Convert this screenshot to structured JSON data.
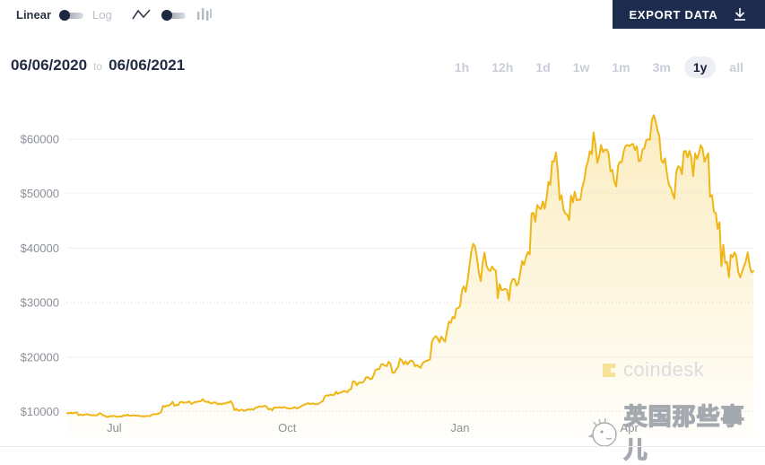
{
  "toolbar": {
    "linear_label": "Linear",
    "log_label": "Log",
    "icons": [
      "line-chart-icon",
      "candles-chart-icon"
    ]
  },
  "export_button": {
    "label": "EXPORT DATA",
    "icon": "download-icon",
    "bg_color": "#1d2b4f"
  },
  "date_range": {
    "start": "06/06/2020",
    "separator": "to",
    "end": "06/06/2021"
  },
  "range_buttons": [
    {
      "label": "1h",
      "active": false
    },
    {
      "label": "12h",
      "active": false
    },
    {
      "label": "1d",
      "active": false
    },
    {
      "label": "1w",
      "active": false
    },
    {
      "label": "1m",
      "active": false
    },
    {
      "label": "3m",
      "active": false
    },
    {
      "label": "1y",
      "active": true
    },
    {
      "label": "all",
      "active": false
    }
  ],
  "chart_data": {
    "type": "area",
    "title": "",
    "start_date": "06/06/2020",
    "end_date": "06/06/2021",
    "ylim": [
      8000,
      65000
    ],
    "grid": true,
    "line_color": "#f0b616",
    "fill_top": "rgba(244,196,48,0.30)",
    "fill_bottom": "rgba(244,196,48,0.02)",
    "y_ticks": [
      {
        "label": "$60000",
        "value": 60000,
        "line": "solid"
      },
      {
        "label": "$50000",
        "value": 50000,
        "line": "dotted"
      },
      {
        "label": "$40000",
        "value": 40000,
        "line": "solid"
      },
      {
        "label": "$30000",
        "value": 30000,
        "line": "dotted"
      },
      {
        "label": "$20000",
        "value": 20000,
        "line": "solid"
      },
      {
        "label": "$10000",
        "value": 10000,
        "line": "dotted"
      }
    ],
    "x_ticks": [
      {
        "label": "Jul",
        "day": 25
      },
      {
        "label": "Oct",
        "day": 117
      },
      {
        "label": "Jan",
        "day": 209
      },
      {
        "label": "Apr",
        "day": 299
      }
    ],
    "prices": [
      9660,
      9750,
      9770,
      9690,
      9790,
      9870,
      9320,
      9470,
      9340,
      9430,
      9530,
      9460,
      9390,
      9300,
      9360,
      9290,
      9330,
      9690,
      9620,
      9300,
      9250,
      9010,
      9070,
      9190,
      9140,
      9230,
      9090,
      9060,
      9130,
      9070,
      9340,
      9250,
      9440,
      9230,
      9280,
      9290,
      9300,
      9240,
      9250,
      9190,
      9130,
      9150,
      9170,
      9210,
      9160,
      9390,
      9520,
      9540,
      9550,
      9700,
      9930,
      11030,
      10910,
      11100,
      11110,
      11350,
      11810,
      11070,
      11230,
      11200,
      11750,
      11780,
      11600,
      11690,
      11680,
      11890,
      11390,
      11570,
      11780,
      11780,
      11850,
      11910,
      12250,
      11950,
      11750,
      11850,
      11530,
      11540,
      11680,
      11660,
      11320,
      11470,
      11330,
      11530,
      11470,
      11700,
      11650,
      11920,
      11390,
      10230,
      10510,
      10170,
      10280,
      10370,
      10130,
      10240,
      10400,
      10340,
      10440,
      10330,
      10670,
      10780,
      10950,
      10940,
      10930,
      11080,
      10920,
      10420,
      10530,
      10230,
      10740,
      10700,
      10750,
      10770,
      10690,
      10840,
      10780,
      10610,
      10570,
      10550,
      10670,
      10800,
      10600,
      10670,
      10920,
      11060,
      11290,
      11370,
      11530,
      11420,
      11420,
      11500,
      11320,
      11360,
      11510,
      11740,
      11910,
      12800,
      12990,
      12930,
      13120,
      13030,
      13070,
      13650,
      13270,
      13440,
      13560,
      13780,
      13760,
      13550,
      14020,
      14140,
      15580,
      15480,
      14820,
      15290,
      15330,
      15300,
      15680,
      16280,
      16320,
      15960,
      15960,
      16700,
      17660,
      17800,
      17780,
      18650,
      18700,
      18420,
      18370,
      19160,
      18730,
      17150,
      17110,
      17720,
      18180,
      19700,
      19430,
      18660,
      19240,
      18650,
      19160,
      19380,
      19210,
      18320,
      18550,
      18270,
      18040,
      18810,
      19170,
      19270,
      19430,
      19570,
      22810,
      23480,
      23860,
      23470,
      22720,
      23780,
      23240,
      22810,
      24710,
      26490,
      26280,
      27370,
      27100,
      28900,
      29000,
      29370,
      32200,
      33000,
      31990,
      34050,
      36830,
      39470,
      40800,
      40250,
      38150,
      35470,
      33920,
      37320,
      39160,
      36820,
      36070,
      35790,
      36630,
      36070,
      35880,
      30820,
      33410,
      32290,
      32360,
      32560,
      32300,
      30430,
      33470,
      34320,
      34300,
      33110,
      33540,
      35510,
      37620,
      36940,
      38290,
      39240,
      38870,
      46360,
      46480,
      44860,
      47910,
      47380,
      47160,
      48580,
      47230,
      49200,
      52140,
      51600,
      55920,
      55890,
      57530,
      54120,
      48880,
      49700,
      47090,
      46340,
      46140,
      45140,
      49630,
      48400,
      50350,
      48750,
      48900,
      48900,
      51210,
      52370,
      54880,
      55880,
      57810,
      57250,
      61240,
      59020,
      55630,
      56900,
      58910,
      57650,
      58050,
      58110,
      57360,
      54090,
      54360,
      52280,
      51300,
      55070,
      55840,
      55780,
      57640,
      58760,
      58920,
      58730,
      58990,
      59130,
      58020,
      58720,
      55960,
      56050,
      58080,
      58330,
      59790,
      59990,
      59890,
      63500,
      64400,
      63310,
      61570,
      60580,
      56220,
      55630,
      56470,
      53810,
      51690,
      51100,
      50050,
      49080,
      54020,
      55030,
      54820,
      53570,
      57750,
      57830,
      56620,
      57820,
      56600,
      53220,
      57390,
      56400,
      57350,
      58890,
      58250,
      55850,
      56700,
      57390,
      49400,
      49720,
      46720,
      46440,
      43540,
      44740,
      36690,
      40590,
      37280,
      37450,
      34680,
      38800,
      38320,
      39250,
      38450,
      35650,
      34610,
      35660,
      36680,
      37580,
      39210,
      36850,
      35540,
      35800
    ]
  },
  "watermarks": {
    "coindesk": "coindesk",
    "site": "英国那些事儿"
  },
  "axis_colors": {
    "label": "#8b9099",
    "grid_solid": "#edeff2",
    "grid_dotted": "#d9dde2"
  }
}
